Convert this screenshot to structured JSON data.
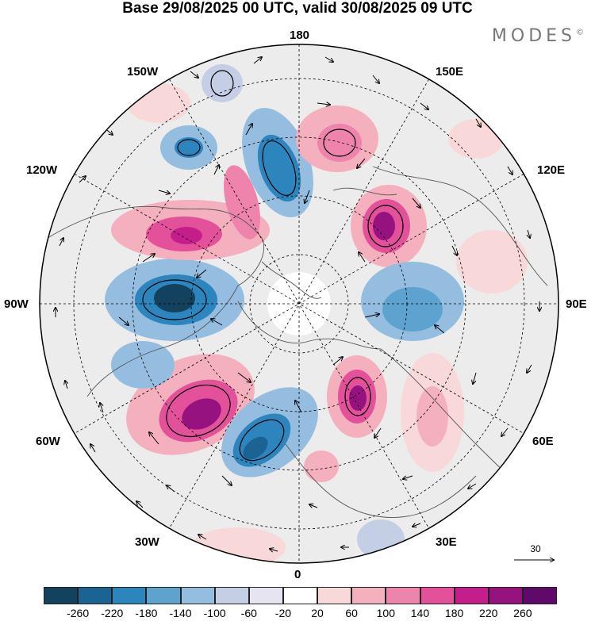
{
  "header": {
    "title": "Base 29/08/2025 00 UTC, valid 30/08/2025 09 UTC",
    "brand": "MODES",
    "brand_mark": "©"
  },
  "map": {
    "projection": "north polar stereographic",
    "longitude_labels": {
      "top": "180",
      "bottom": "0",
      "left": "90W",
      "right": "90E",
      "upper_left": "150W",
      "upper_right": "150E",
      "mid_left": "120W",
      "mid_right": "120E",
      "lower_left_mid": "60W",
      "lower_right_mid": "60E",
      "lower_left": "30W",
      "lower_right": "30E"
    },
    "reference_vector_label": "30"
  },
  "colorbar": {
    "colors": [
      "#13425f",
      "#1b6393",
      "#2c85bd",
      "#5ea2cf",
      "#94bde0",
      "#c4cfe6",
      "#e6e4f1",
      "#ffffff",
      "#f8d8d8",
      "#f4b1bd",
      "#ee83ab",
      "#e4519b",
      "#c41e8c",
      "#96127f",
      "#5f0a6a"
    ],
    "tick_labels": [
      "-260",
      "-220",
      "-180",
      "-140",
      "-100",
      "-60",
      "-20",
      "20",
      "60",
      "100",
      "140",
      "180",
      "220",
      "260"
    ]
  }
}
